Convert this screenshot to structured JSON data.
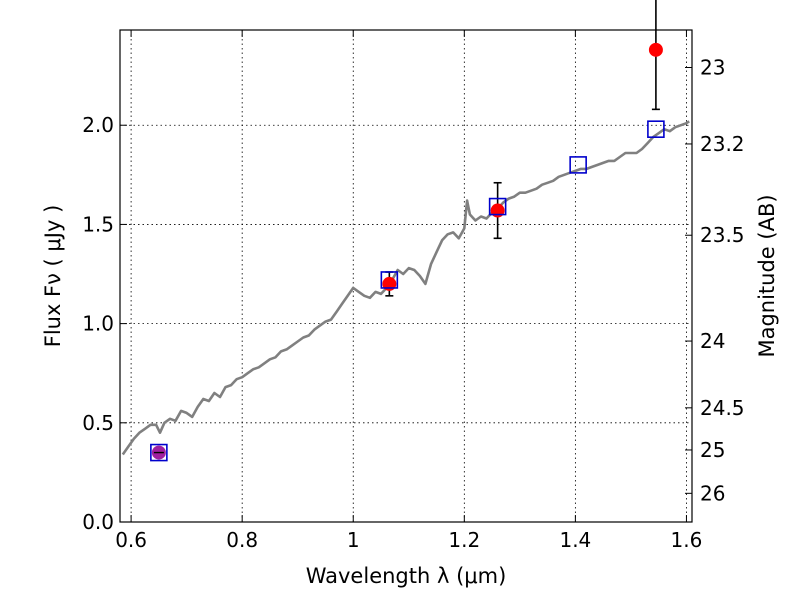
{
  "chart_data": {
    "type": "scatter",
    "title": "",
    "xlabel": "Wavelength  λ (μm)",
    "ylabel": "Flux  Fν  ( μJy )",
    "ylabel_right": "Magnitude (AB)",
    "xlim": [
      0.58,
      1.61
    ],
    "ylim": [
      0.0,
      2.48
    ],
    "grid": true,
    "x_ticks": [
      {
        "value": 0.6,
        "label": "0.6"
      },
      {
        "value": 0.8,
        "label": "0.8"
      },
      {
        "value": 1.0,
        "label": "1"
      },
      {
        "value": 1.2,
        "label": "1.2"
      },
      {
        "value": 1.4,
        "label": "1.4"
      },
      {
        "value": 1.6,
        "label": "1.6"
      }
    ],
    "y_ticks": [
      {
        "value": 0.0,
        "label": "0.0"
      },
      {
        "value": 0.5,
        "label": "0.5"
      },
      {
        "value": 1.0,
        "label": "1.0"
      },
      {
        "value": 1.5,
        "label": "1.5"
      },
      {
        "value": 2.0,
        "label": "2.0"
      }
    ],
    "right_ticks": [
      {
        "value": 23,
        "label": "23"
      },
      {
        "value": 23.2,
        "label": "23.2"
      },
      {
        "value": 23.5,
        "label": "23.5"
      },
      {
        "value": 24,
        "label": "24"
      },
      {
        "value": 24.5,
        "label": "24.5"
      },
      {
        "value": 25,
        "label": "25"
      },
      {
        "value": 26,
        "label": "26"
      }
    ],
    "series": [
      {
        "kind": "spectrum-line",
        "color": "#808080",
        "points": [
          [
            0.585,
            0.34
          ],
          [
            0.595,
            0.38
          ],
          [
            0.605,
            0.42
          ],
          [
            0.615,
            0.45
          ],
          [
            0.625,
            0.47
          ],
          [
            0.635,
            0.49
          ],
          [
            0.645,
            0.49
          ],
          [
            0.652,
            0.45
          ],
          [
            0.66,
            0.5
          ],
          [
            0.67,
            0.52
          ],
          [
            0.68,
            0.51
          ],
          [
            0.69,
            0.56
          ],
          [
            0.7,
            0.55
          ],
          [
            0.71,
            0.53
          ],
          [
            0.72,
            0.58
          ],
          [
            0.73,
            0.62
          ],
          [
            0.74,
            0.61
          ],
          [
            0.75,
            0.65
          ],
          [
            0.76,
            0.63
          ],
          [
            0.77,
            0.68
          ],
          [
            0.78,
            0.69
          ],
          [
            0.79,
            0.72
          ],
          [
            0.8,
            0.73
          ],
          [
            0.81,
            0.75
          ],
          [
            0.82,
            0.77
          ],
          [
            0.83,
            0.78
          ],
          [
            0.84,
            0.8
          ],
          [
            0.85,
            0.82
          ],
          [
            0.86,
            0.83
          ],
          [
            0.87,
            0.86
          ],
          [
            0.88,
            0.87
          ],
          [
            0.89,
            0.89
          ],
          [
            0.9,
            0.91
          ],
          [
            0.91,
            0.93
          ],
          [
            0.92,
            0.94
          ],
          [
            0.93,
            0.97
          ],
          [
            0.94,
            0.99
          ],
          [
            0.95,
            1.01
          ],
          [
            0.96,
            1.02
          ],
          [
            0.97,
            1.06
          ],
          [
            0.98,
            1.1
          ],
          [
            0.99,
            1.14
          ],
          [
            1.0,
            1.18
          ],
          [
            1.01,
            1.16
          ],
          [
            1.02,
            1.14
          ],
          [
            1.03,
            1.13
          ],
          [
            1.04,
            1.16
          ],
          [
            1.05,
            1.15
          ],
          [
            1.06,
            1.18
          ],
          [
            1.07,
            1.22
          ],
          [
            1.08,
            1.27
          ],
          [
            1.09,
            1.25
          ],
          [
            1.1,
            1.28
          ],
          [
            1.11,
            1.27
          ],
          [
            1.12,
            1.24
          ],
          [
            1.13,
            1.2
          ],
          [
            1.14,
            1.3
          ],
          [
            1.15,
            1.36
          ],
          [
            1.16,
            1.42
          ],
          [
            1.17,
            1.45
          ],
          [
            1.18,
            1.46
          ],
          [
            1.19,
            1.43
          ],
          [
            1.2,
            1.48
          ],
          [
            1.205,
            1.62
          ],
          [
            1.21,
            1.55
          ],
          [
            1.22,
            1.52
          ],
          [
            1.23,
            1.54
          ],
          [
            1.24,
            1.53
          ],
          [
            1.25,
            1.56
          ],
          [
            1.26,
            1.58
          ],
          [
            1.27,
            1.61
          ],
          [
            1.28,
            1.63
          ],
          [
            1.29,
            1.64
          ],
          [
            1.3,
            1.66
          ],
          [
            1.31,
            1.66
          ],
          [
            1.32,
            1.67
          ],
          [
            1.33,
            1.68
          ],
          [
            1.34,
            1.7
          ],
          [
            1.35,
            1.71
          ],
          [
            1.36,
            1.72
          ],
          [
            1.37,
            1.74
          ],
          [
            1.38,
            1.75
          ],
          [
            1.39,
            1.76
          ],
          [
            1.4,
            1.77
          ],
          [
            1.41,
            1.78
          ],
          [
            1.42,
            1.78
          ],
          [
            1.43,
            1.79
          ],
          [
            1.44,
            1.8
          ],
          [
            1.45,
            1.81
          ],
          [
            1.46,
            1.82
          ],
          [
            1.47,
            1.82
          ],
          [
            1.48,
            1.84
          ],
          [
            1.49,
            1.86
          ],
          [
            1.5,
            1.86
          ],
          [
            1.51,
            1.86
          ],
          [
            1.52,
            1.88
          ],
          [
            1.53,
            1.91
          ],
          [
            1.54,
            1.94
          ],
          [
            1.55,
            1.96
          ],
          [
            1.56,
            1.98
          ],
          [
            1.57,
            1.97
          ],
          [
            1.58,
            1.99
          ],
          [
            1.59,
            2.0
          ],
          [
            1.6,
            2.01
          ],
          [
            1.605,
            2.02
          ]
        ]
      },
      {
        "kind": "model-squares",
        "color": "#0000cc",
        "points": [
          [
            0.65,
            0.35
          ],
          [
            1.065,
            1.22
          ],
          [
            1.26,
            1.59
          ],
          [
            1.405,
            1.8
          ],
          [
            1.545,
            1.98
          ]
        ]
      },
      {
        "kind": "observed-points",
        "color": "#ff0000",
        "points": [
          {
            "x": 1.065,
            "y": 1.2,
            "err": 0.06
          },
          {
            "x": 1.26,
            "y": 1.57,
            "err": 0.14
          },
          {
            "x": 1.545,
            "y": 2.38,
            "err": 0.3
          }
        ]
      },
      {
        "kind": "observed-point-purple",
        "color": "#a020a0",
        "points": [
          {
            "x": 0.65,
            "y": 0.35,
            "xerr": 0.01,
            "err": 0.01
          }
        ]
      }
    ]
  }
}
